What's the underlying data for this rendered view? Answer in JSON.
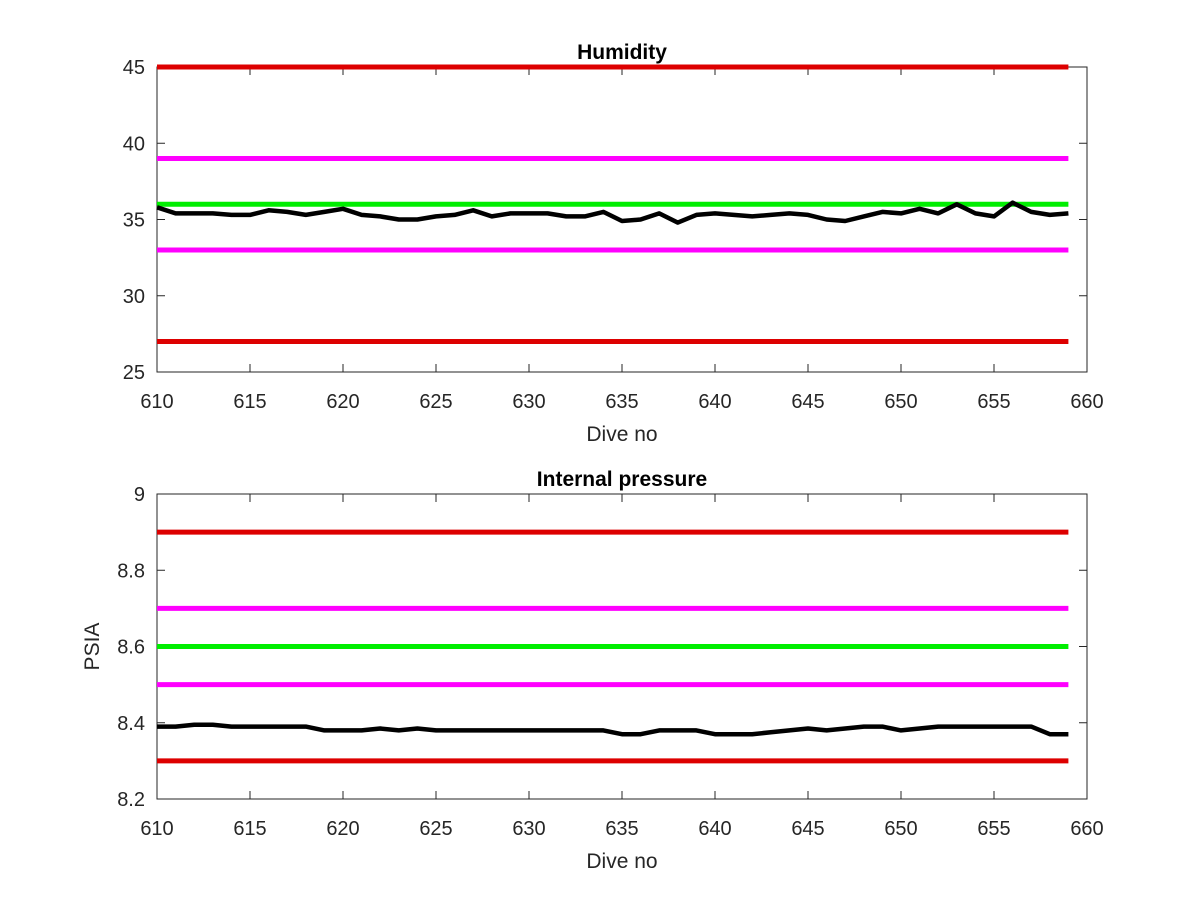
{
  "chart_data": [
    {
      "type": "line",
      "title": "Humidity",
      "xlabel": "Dive no",
      "ylabel": "",
      "xlim": [
        610,
        660
      ],
      "ylim": [
        25,
        45
      ],
      "xticks": [
        610,
        615,
        620,
        625,
        630,
        635,
        640,
        645,
        650,
        655,
        660
      ],
      "yticks": [
        25,
        30,
        35,
        40,
        45
      ],
      "grid": false,
      "legend": "none",
      "series": [
        {
          "color": "#dd0000",
          "style": "threshold",
          "x": [
            610,
            659
          ],
          "values": [
            45,
            45
          ]
        },
        {
          "color": "#dd0000",
          "style": "threshold",
          "x": [
            610,
            659
          ],
          "values": [
            27,
            27
          ]
        },
        {
          "color": "#ff00ff",
          "style": "threshold",
          "x": [
            610,
            659
          ],
          "values": [
            39,
            39
          ]
        },
        {
          "color": "#ff00ff",
          "style": "threshold",
          "x": [
            610,
            659
          ],
          "values": [
            33,
            33
          ]
        },
        {
          "color": "#00ee00",
          "style": "threshold",
          "x": [
            610,
            659
          ],
          "values": [
            36,
            36
          ]
        },
        {
          "color": "#000000",
          "style": "measurement",
          "x": [
            610,
            611,
            612,
            613,
            614,
            615,
            616,
            617,
            618,
            619,
            620,
            621,
            622,
            623,
            624,
            625,
            626,
            627,
            628,
            629,
            630,
            631,
            632,
            633,
            634,
            635,
            636,
            637,
            638,
            639,
            640,
            641,
            642,
            643,
            644,
            645,
            646,
            647,
            648,
            649,
            650,
            651,
            652,
            653,
            654,
            655,
            656,
            657,
            658,
            659
          ],
          "values": [
            35.8,
            35.4,
            35.4,
            35.4,
            35.3,
            35.3,
            35.6,
            35.5,
            35.3,
            35.5,
            35.7,
            35.3,
            35.2,
            35.0,
            35.0,
            35.2,
            35.3,
            35.6,
            35.2,
            35.4,
            35.4,
            35.4,
            35.2,
            35.2,
            35.5,
            34.9,
            35.0,
            35.4,
            34.8,
            35.3,
            35.4,
            35.3,
            35.2,
            35.3,
            35.4,
            35.3,
            35.0,
            34.9,
            35.2,
            35.5,
            35.4,
            35.7,
            35.4,
            36.0,
            35.4,
            35.2,
            36.1,
            35.5,
            35.3,
            35.4
          ]
        }
      ]
    },
    {
      "type": "line",
      "title": "Internal pressure",
      "xlabel": "Dive no",
      "ylabel": "PSIA",
      "xlim": [
        610,
        660
      ],
      "ylim": [
        8.2,
        9
      ],
      "xticks": [
        610,
        615,
        620,
        625,
        630,
        635,
        640,
        645,
        650,
        655,
        660
      ],
      "yticks": [
        8.2,
        8.4,
        8.6,
        8.8,
        9
      ],
      "grid": false,
      "legend": "none",
      "series": [
        {
          "color": "#dd0000",
          "style": "threshold",
          "x": [
            610,
            659
          ],
          "values": [
            8.9,
            8.9
          ]
        },
        {
          "color": "#dd0000",
          "style": "threshold",
          "x": [
            610,
            659
          ],
          "values": [
            8.3,
            8.3
          ]
        },
        {
          "color": "#ff00ff",
          "style": "threshold",
          "x": [
            610,
            659
          ],
          "values": [
            8.7,
            8.7
          ]
        },
        {
          "color": "#ff00ff",
          "style": "threshold",
          "x": [
            610,
            659
          ],
          "values": [
            8.5,
            8.5
          ]
        },
        {
          "color": "#00ee00",
          "style": "threshold",
          "x": [
            610,
            659
          ],
          "values": [
            8.6,
            8.6
          ]
        },
        {
          "color": "#000000",
          "style": "measurement",
          "x": [
            610,
            611,
            612,
            613,
            614,
            615,
            616,
            617,
            618,
            619,
            620,
            621,
            622,
            623,
            624,
            625,
            626,
            627,
            628,
            629,
            630,
            631,
            632,
            633,
            634,
            635,
            636,
            637,
            638,
            639,
            640,
            641,
            642,
            643,
            644,
            645,
            646,
            647,
            648,
            649,
            650,
            651,
            652,
            653,
            654,
            655,
            656,
            657,
            658,
            659
          ],
          "values": [
            8.39,
            8.39,
            8.395,
            8.395,
            8.39,
            8.39,
            8.39,
            8.39,
            8.39,
            8.38,
            8.38,
            8.38,
            8.385,
            8.38,
            8.385,
            8.38,
            8.38,
            8.38,
            8.38,
            8.38,
            8.38,
            8.38,
            8.38,
            8.38,
            8.38,
            8.37,
            8.37,
            8.38,
            8.38,
            8.38,
            8.37,
            8.37,
            8.37,
            8.375,
            8.38,
            8.385,
            8.38,
            8.385,
            8.39,
            8.39,
            8.38,
            8.385,
            8.39,
            8.39,
            8.39,
            8.39,
            8.39,
            8.39,
            8.37,
            8.37
          ]
        }
      ]
    }
  ]
}
